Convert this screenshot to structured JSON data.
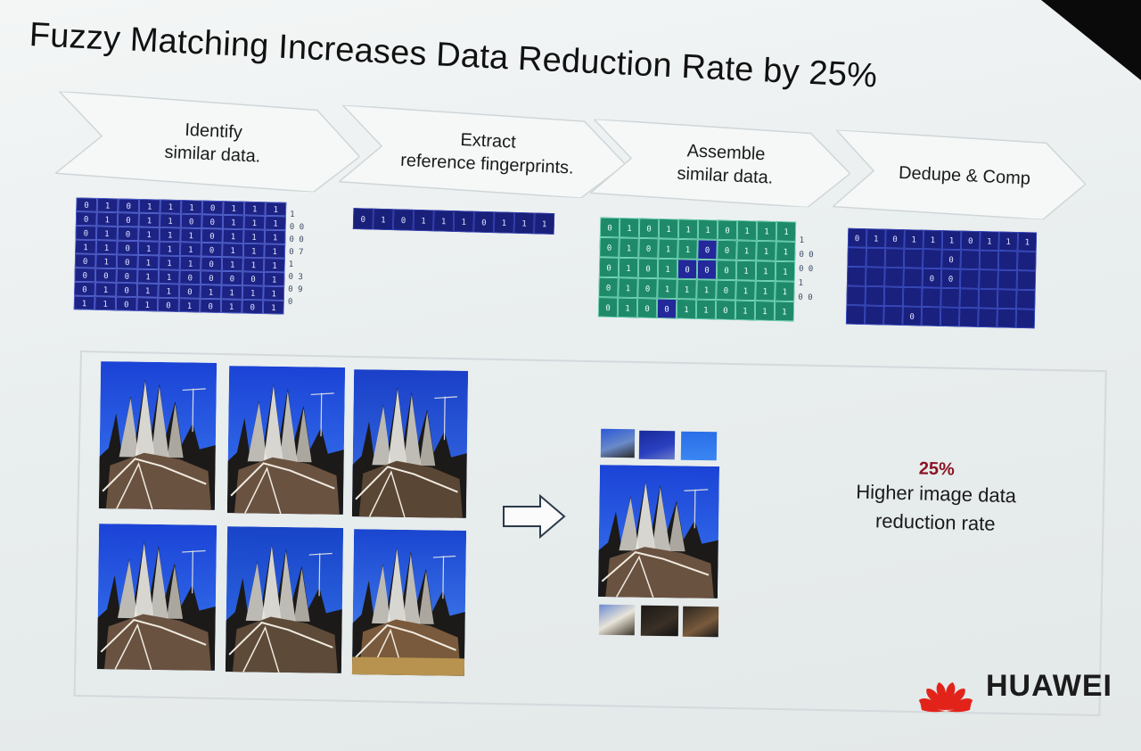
{
  "slide": {
    "title": "Fuzzy Matching Increases Data Reduction Rate by 25%",
    "steps": [
      {
        "label": "Identify\nsimilar data."
      },
      {
        "label": "Extract\nreference fingerprints."
      },
      {
        "label": "Assemble\nsimilar data."
      },
      {
        "label": "Dedupe & Comp"
      }
    ],
    "identify_grid": {
      "rows": [
        [
          "0",
          "1",
          "0",
          "1",
          "1",
          "1",
          "0",
          "1",
          "1",
          "1"
        ],
        [
          "0",
          "1",
          "0",
          "1",
          "1",
          "0",
          "0",
          "1",
          "1",
          "1"
        ],
        [
          "0",
          "1",
          "0",
          "1",
          "1",
          "1",
          "0",
          "1",
          "1",
          "1"
        ],
        [
          "1",
          "1",
          "0",
          "1",
          "1",
          "1",
          "0",
          "1",
          "1",
          "1"
        ],
        [
          "0",
          "1",
          "0",
          "1",
          "1",
          "1",
          "0",
          "1",
          "1",
          "1"
        ],
        [
          "0",
          "0",
          "0",
          "1",
          "1",
          "0",
          "0",
          "0",
          "0",
          "1"
        ],
        [
          "0",
          "1",
          "0",
          "1",
          "1",
          "0",
          "1",
          "1",
          "1",
          "1"
        ],
        [
          "1",
          "1",
          "0",
          "1",
          "0",
          "1",
          "0",
          "1",
          "0",
          "1"
        ]
      ],
      "side_numbers": [
        "1",
        "0 0",
        "0 0",
        "0 7",
        "1",
        "0 3",
        "0 9",
        "0"
      ]
    },
    "fingerprint_row": [
      "0",
      "1",
      "0",
      "1",
      "1",
      "1",
      "0",
      "1",
      "1",
      "1"
    ],
    "assemble_grid": {
      "rows": [
        [
          "0",
          "1",
          "0",
          "1",
          "1",
          "1",
          "0",
          "1",
          "1",
          "1"
        ],
        [
          "0",
          "1",
          "0",
          "1",
          "1",
          "0",
          "0",
          "1",
          "1",
          "1"
        ],
        [
          "0",
          "1",
          "0",
          "1",
          "0",
          "0",
          "0",
          "1",
          "1",
          "1"
        ],
        [
          "0",
          "1",
          "0",
          "1",
          "1",
          "1",
          "0",
          "1",
          "1",
          "1"
        ],
        [
          "0",
          "1",
          "0",
          "0",
          "1",
          "1",
          "0",
          "1",
          "1",
          "1"
        ]
      ],
      "highlight_cells": [
        [
          1,
          5
        ],
        [
          2,
          4
        ],
        [
          2,
          5
        ],
        [
          4,
          3
        ]
      ],
      "side_numbers": [
        "1",
        "0 0",
        "0 0",
        "1",
        "0 0"
      ]
    },
    "dedupe_grid": {
      "first_row": [
        "0",
        "1",
        "0",
        "1",
        "1",
        "1",
        "0",
        "1",
        "1",
        "1"
      ],
      "marks": [
        [
          1,
          5
        ],
        [
          2,
          4
        ],
        [
          2,
          5
        ],
        [
          4,
          3
        ]
      ]
    },
    "result": {
      "percentage": "25%",
      "description": "Higher image data\nreduction rate"
    },
    "brand": {
      "name": "HUAWEI",
      "logo_color": "#e2231a"
    },
    "colors": {
      "grid_blue": "#1a1f7a",
      "grid_green": "#1e8a6a",
      "sky_blue": "#1d4fd8"
    }
  }
}
